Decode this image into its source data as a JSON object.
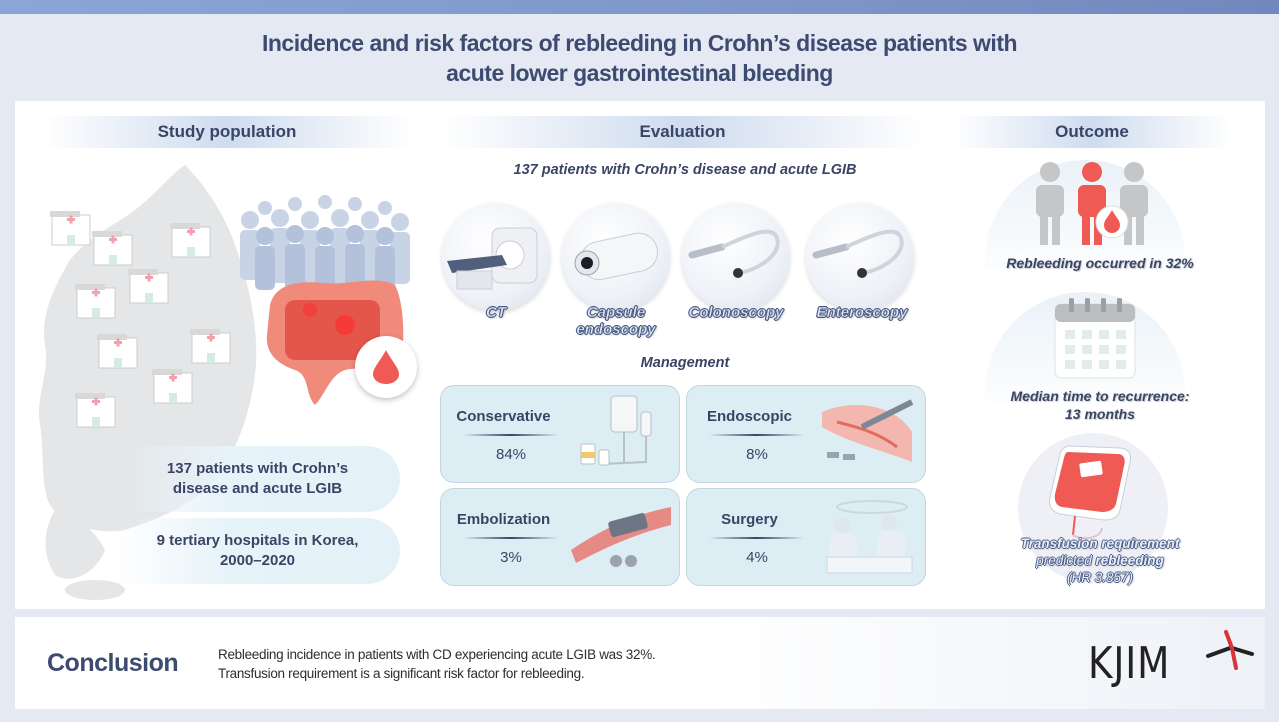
{
  "title": {
    "line1": "Incidence and risk factors of rebleeding in Crohn’s disease patients with",
    "line2": "acute lower gastrointestinal bleeding"
  },
  "study_population": {
    "header": "Study population",
    "box1_line1": "137 patients with Crohn’s",
    "box1_line2": "disease and acute LGIB",
    "box2_line1": "9 tertiary hospitals in Korea,",
    "box2_line2": "2000–2020",
    "icons": [
      "korea-map-icon",
      "hospital-icon",
      "crowd-icon",
      "colon-icon",
      "blood-drop-icon"
    ]
  },
  "evaluation": {
    "header": "Evaluation",
    "subtitle": "137 patients with Crohn’s disease and acute LGIB",
    "modalities": [
      {
        "label": "CT",
        "icon": "ct-scanner-icon"
      },
      {
        "label_line1": "Capsule",
        "label_line2": "endoscopy",
        "icon": "capsule-icon"
      },
      {
        "label": "Colonoscopy",
        "icon": "colonoscope-icon"
      },
      {
        "label": "Enteroscopy",
        "icon": "enteroscope-icon"
      }
    ],
    "management_title": "Management",
    "management": [
      {
        "name": "Conservative",
        "value": "84%",
        "icon": "iv-drip-icon"
      },
      {
        "name": "Endoscopic",
        "value": "8%",
        "icon": "endoscopic-clip-icon"
      },
      {
        "name": "Embolization",
        "value": "3%",
        "icon": "embolization-coil-icon"
      },
      {
        "name": "Surgery",
        "value": "4%",
        "icon": "surgery-icon"
      }
    ]
  },
  "outcome": {
    "header": "Outcome",
    "rebleeding": "Rebleeding occurred in 32%",
    "median_line1": "Median time to recurrence:",
    "median_line2": "13 months",
    "transfusion_line1": "Transfusion requirement",
    "transfusion_line2a": "predicted ",
    "transfusion_line2b": "rebleeding",
    "transfusion_line3": "(HR 3.857)",
    "icons": [
      "people-icon",
      "calendar-icon",
      "blood-bag-icon"
    ]
  },
  "conclusion": {
    "title": "Conclusion",
    "line1": "Rebleeding incidence in patients with CD experiencing acute LGIB was 32%.",
    "line2": "Transfusion requirement is a significant risk factor for rebleeding."
  },
  "logo": {
    "text": "KJIM"
  },
  "colors": {
    "accent_blue": "#3e4b70",
    "blood_red": "#ef5a55",
    "card_bg": "#dcedf4",
    "top_bar": "#8aa6d6"
  }
}
